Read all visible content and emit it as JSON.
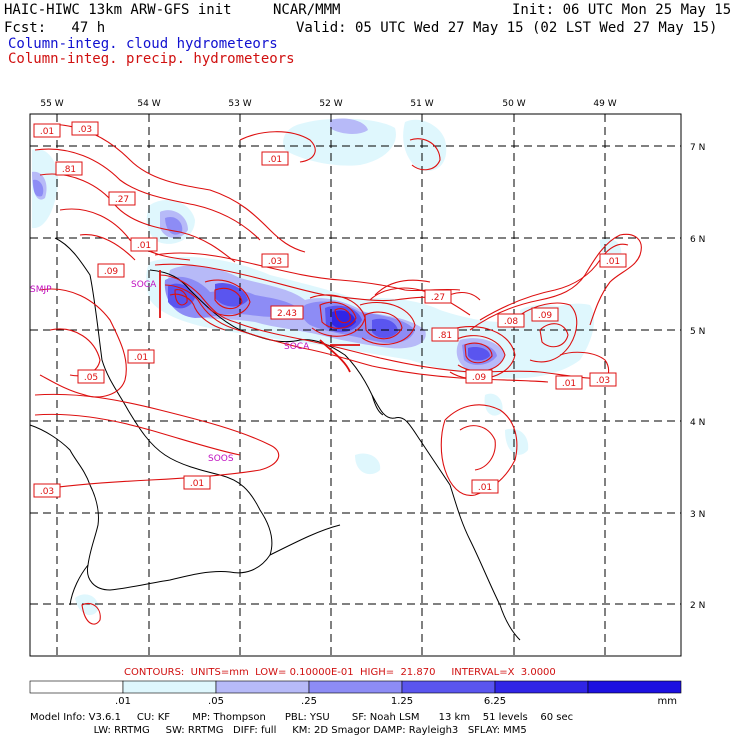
{
  "header": {
    "model": "HAIC-HIWC 13km ARW-GFS init",
    "org": "NCAR/MMM",
    "init": "Init: 06 UTC Mon 25 May 15",
    "fcst": "Fcst:   47 h",
    "valid": "Valid: 05 UTC Wed 27 May 15 (02 LST Wed 27 May 15)",
    "field1": "Column-integ. cloud hydrometeors",
    "field2": "Column-integ. precip. hydrometeors"
  },
  "axes": {
    "lon_labels": [
      "55 W",
      "54 W",
      "53 W",
      "52 W",
      "51 W",
      "50 W",
      "49 W"
    ],
    "lat_labels": [
      "7 N",
      "6 N",
      "5 N",
      "4 N",
      "3 N",
      "2 N"
    ]
  },
  "stations": [
    "SMJP",
    "SOCA",
    "SOCA",
    "SOOS"
  ],
  "contour_labels": [
    ".01",
    ".03",
    ".81",
    ".27",
    ".01",
    ".01",
    ".09",
    ".03",
    "2.43",
    ".27",
    ".01",
    ".09",
    ".05",
    ".01",
    ".08",
    ".09",
    ".81",
    ".01",
    ".01",
    ".03",
    ".01",
    ".03"
  ],
  "colorbar": {
    "thresholds": [
      ".01",
      ".05",
      ".25",
      "1.25",
      "6.25"
    ],
    "unit": "mm",
    "colors": [
      "#ffffff",
      "#dff7fd",
      "#b7baf8",
      "#8d8cf5",
      "#5a55ef",
      "#3025e6",
      "#1c10e0"
    ],
    "contour_info": "CONTOURS:  UNITS=mm  LOW= 0.10000E-01  HIGH=  21.870     INTERVAL=X  3.0000"
  },
  "footer": {
    "line1": "Model Info: V3.6.1     CU: KF       MP: Thompson      PBL: YSU       SF: Noah LSM      13 km    51 levels    60 sec",
    "line2": "                    LW: RRTMG     SW: RRTMG   DIFF: full     KM: 2D Smagor DAMP: Rayleigh3   SFLAY: MM5"
  }
}
